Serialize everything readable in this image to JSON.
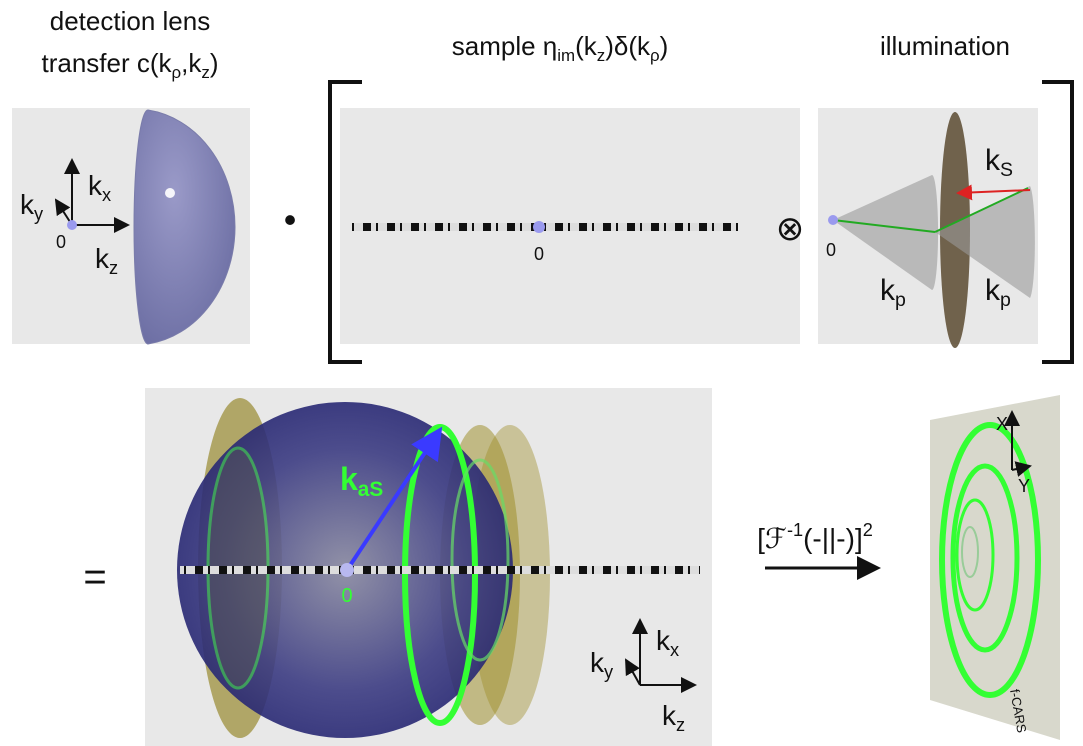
{
  "detection": {
    "title_line1": "detection lens",
    "title_line2": [
      "transfer c(k",
      "ρ",
      ",k",
      "z",
      ")"
    ],
    "kx": [
      "k",
      "x"
    ],
    "ky": [
      "k",
      "y"
    ],
    "kz": [
      "k",
      "z"
    ],
    "origin": "0"
  },
  "sample": {
    "title": [
      "sample η",
      "im",
      "(k",
      "z",
      ")δ(k",
      "ρ",
      ")"
    ],
    "origin": "0"
  },
  "illumination": {
    "title": "illumination",
    "ks": [
      "k",
      "S"
    ],
    "kp_left": [
      "k",
      "p"
    ],
    "kp_right": [
      "k",
      "p"
    ],
    "origin": "0"
  },
  "operators": {
    "dot": "•",
    "convolve": "⊗",
    "equals": "="
  },
  "result": {
    "kas": [
      "k",
      "aS"
    ],
    "origin": "0",
    "kx": [
      "k",
      "x"
    ],
    "ky": [
      "k",
      "y"
    ],
    "kz": [
      "k",
      "z"
    ]
  },
  "transform": {
    "label": [
      "[ℱ",
      "-1",
      "(-||-)]",
      "2"
    ]
  },
  "screen": {
    "x": "X",
    "y": "Y",
    "tag": "f-CARS"
  }
}
